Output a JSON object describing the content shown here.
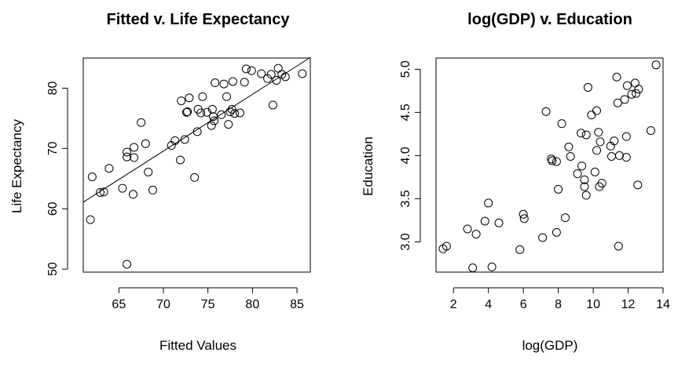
{
  "chart_data": [
    {
      "type": "scatter",
      "title": "Fitted v. Life Expectancy",
      "xlabel": "Fitted Values",
      "ylabel": "Life Expectancy",
      "xlim": [
        61,
        86.5
      ],
      "ylim": [
        49.5,
        85
      ],
      "xticks": [
        65,
        70,
        75,
        80,
        85
      ],
      "yticks": [
        50,
        60,
        70,
        80
      ],
      "grid": false,
      "fit_line": {
        "x": [
          61,
          86.5
        ],
        "y": [
          61.1,
          85.1
        ]
      },
      "points": [
        {
          "x": 61.8,
          "y": 58.2
        },
        {
          "x": 62.0,
          "y": 65.3
        },
        {
          "x": 62.9,
          "y": 62.7
        },
        {
          "x": 63.3,
          "y": 62.8
        },
        {
          "x": 63.9,
          "y": 66.7
        },
        {
          "x": 65.4,
          "y": 63.4
        },
        {
          "x": 65.9,
          "y": 50.8
        },
        {
          "x": 65.9,
          "y": 69.4
        },
        {
          "x": 65.9,
          "y": 68.6
        },
        {
          "x": 66.6,
          "y": 62.4
        },
        {
          "x": 66.7,
          "y": 70.2
        },
        {
          "x": 66.7,
          "y": 68.5
        },
        {
          "x": 67.5,
          "y": 74.3
        },
        {
          "x": 68.0,
          "y": 70.8
        },
        {
          "x": 68.3,
          "y": 66.1
        },
        {
          "x": 68.8,
          "y": 63.1
        },
        {
          "x": 70.9,
          "y": 70.5
        },
        {
          "x": 71.3,
          "y": 71.3
        },
        {
          "x": 71.9,
          "y": 68.1
        },
        {
          "x": 72.0,
          "y": 77.9
        },
        {
          "x": 72.4,
          "y": 71.5
        },
        {
          "x": 72.6,
          "y": 76.0
        },
        {
          "x": 72.7,
          "y": 76.1
        },
        {
          "x": 72.9,
          "y": 78.4
        },
        {
          "x": 73.5,
          "y": 65.2
        },
        {
          "x": 73.8,
          "y": 72.8
        },
        {
          "x": 73.9,
          "y": 76.5
        },
        {
          "x": 74.2,
          "y": 75.9
        },
        {
          "x": 74.4,
          "y": 78.6
        },
        {
          "x": 74.9,
          "y": 76.0
        },
        {
          "x": 75.4,
          "y": 73.8
        },
        {
          "x": 75.5,
          "y": 76.5
        },
        {
          "x": 75.6,
          "y": 75.3
        },
        {
          "x": 75.7,
          "y": 74.6
        },
        {
          "x": 75.8,
          "y": 80.9
        },
        {
          "x": 76.5,
          "y": 75.6
        },
        {
          "x": 76.8,
          "y": 80.7
        },
        {
          "x": 77.1,
          "y": 78.6
        },
        {
          "x": 77.3,
          "y": 74.0
        },
        {
          "x": 77.5,
          "y": 76.1
        },
        {
          "x": 77.7,
          "y": 76.5
        },
        {
          "x": 77.8,
          "y": 81.1
        },
        {
          "x": 78.0,
          "y": 75.8
        },
        {
          "x": 78.6,
          "y": 75.9
        },
        {
          "x": 79.1,
          "y": 81.0
        },
        {
          "x": 79.3,
          "y": 83.2
        },
        {
          "x": 79.9,
          "y": 82.9
        },
        {
          "x": 81.0,
          "y": 82.4
        },
        {
          "x": 81.7,
          "y": 81.6
        },
        {
          "x": 82.1,
          "y": 82.3
        },
        {
          "x": 82.3,
          "y": 77.2
        },
        {
          "x": 82.7,
          "y": 81.3
        },
        {
          "x": 82.9,
          "y": 83.3
        },
        {
          "x": 83.3,
          "y": 82.3
        },
        {
          "x": 83.7,
          "y": 81.9
        },
        {
          "x": 85.6,
          "y": 82.4
        }
      ]
    },
    {
      "type": "scatter",
      "title": "log(GDP) v. Education",
      "xlabel": "log(GDP)",
      "ylabel": "Education",
      "xlim": [
        1.0,
        14.0
      ],
      "ylim": [
        2.65,
        5.13
      ],
      "xticks": [
        2,
        4,
        6,
        8,
        10,
        12,
        14
      ],
      "yticks": [
        3.0,
        3.5,
        4.0,
        4.5,
        5.0
      ],
      "grid": false,
      "points": [
        {
          "x": 1.4,
          "y": 2.92
        },
        {
          "x": 1.6,
          "y": 2.95
        },
        {
          "x": 2.8,
          "y": 3.15
        },
        {
          "x": 3.1,
          "y": 2.7
        },
        {
          "x": 3.3,
          "y": 3.09
        },
        {
          "x": 3.8,
          "y": 3.24
        },
        {
          "x": 4.0,
          "y": 3.45
        },
        {
          "x": 4.2,
          "y": 2.71
        },
        {
          "x": 4.6,
          "y": 3.22
        },
        {
          "x": 5.8,
          "y": 2.91
        },
        {
          "x": 6.0,
          "y": 3.32
        },
        {
          "x": 6.05,
          "y": 3.27
        },
        {
          "x": 7.1,
          "y": 3.05
        },
        {
          "x": 7.3,
          "y": 4.51
        },
        {
          "x": 7.6,
          "y": 3.96
        },
        {
          "x": 7.65,
          "y": 3.94
        },
        {
          "x": 7.9,
          "y": 3.93
        },
        {
          "x": 7.9,
          "y": 3.11
        },
        {
          "x": 8.0,
          "y": 3.61
        },
        {
          "x": 8.2,
          "y": 4.37
        },
        {
          "x": 8.4,
          "y": 3.28
        },
        {
          "x": 8.6,
          "y": 4.1
        },
        {
          "x": 8.7,
          "y": 3.99
        },
        {
          "x": 9.1,
          "y": 3.79
        },
        {
          "x": 9.3,
          "y": 4.26
        },
        {
          "x": 9.35,
          "y": 3.88
        },
        {
          "x": 9.5,
          "y": 3.72
        },
        {
          "x": 9.5,
          "y": 3.64
        },
        {
          "x": 9.6,
          "y": 3.54
        },
        {
          "x": 9.6,
          "y": 4.24
        },
        {
          "x": 9.7,
          "y": 4.79
        },
        {
          "x": 9.9,
          "y": 4.47
        },
        {
          "x": 10.1,
          "y": 3.81
        },
        {
          "x": 10.2,
          "y": 4.52
        },
        {
          "x": 10.2,
          "y": 4.06
        },
        {
          "x": 10.3,
          "y": 4.27
        },
        {
          "x": 10.35,
          "y": 3.64
        },
        {
          "x": 10.4,
          "y": 4.16
        },
        {
          "x": 10.5,
          "y": 3.68
        },
        {
          "x": 11.0,
          "y": 4.11
        },
        {
          "x": 11.05,
          "y": 3.99
        },
        {
          "x": 11.2,
          "y": 4.17
        },
        {
          "x": 11.35,
          "y": 4.91
        },
        {
          "x": 11.4,
          "y": 4.61
        },
        {
          "x": 11.45,
          "y": 2.95
        },
        {
          "x": 11.5,
          "y": 4.0
        },
        {
          "x": 11.8,
          "y": 4.65
        },
        {
          "x": 11.9,
          "y": 3.98
        },
        {
          "x": 11.9,
          "y": 4.22
        },
        {
          "x": 11.95,
          "y": 4.81
        },
        {
          "x": 12.2,
          "y": 4.71
        },
        {
          "x": 12.4,
          "y": 4.84
        },
        {
          "x": 12.45,
          "y": 4.72
        },
        {
          "x": 12.55,
          "y": 3.66
        },
        {
          "x": 12.6,
          "y": 4.77
        },
        {
          "x": 13.3,
          "y": 4.29
        },
        {
          "x": 13.6,
          "y": 5.05
        }
      ]
    }
  ]
}
